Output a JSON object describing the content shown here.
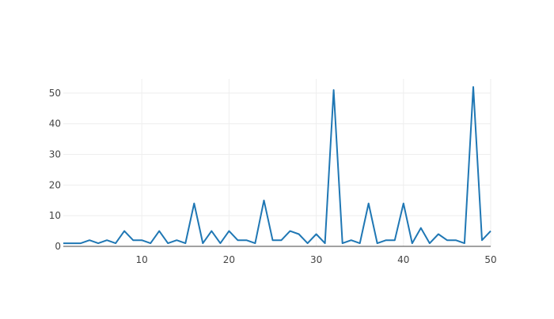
{
  "chart_data": {
    "type": "line",
    "title": "",
    "xlabel": "",
    "ylabel": "",
    "xlim": [
      1,
      50
    ],
    "ylim": [
      0,
      54.6
    ],
    "grid": true,
    "legend": "none",
    "x_ticks": [
      10,
      20,
      30,
      40,
      50
    ],
    "y_ticks": [
      0,
      10,
      20,
      30,
      40,
      50
    ],
    "line_color": "#1f77b4",
    "x": [
      1,
      2,
      3,
      4,
      5,
      6,
      7,
      8,
      9,
      10,
      11,
      12,
      13,
      14,
      15,
      16,
      17,
      18,
      19,
      20,
      21,
      22,
      23,
      24,
      25,
      26,
      27,
      28,
      29,
      30,
      31,
      32,
      33,
      34,
      35,
      36,
      37,
      38,
      39,
      40,
      41,
      42,
      43,
      44,
      45,
      46,
      47,
      48,
      49,
      50
    ],
    "values": [
      1,
      1,
      1,
      2,
      1,
      2,
      1,
      5,
      2,
      2,
      1,
      5,
      1,
      2,
      1,
      14,
      1,
      5,
      1,
      5,
      2,
      2,
      1,
      15,
      2,
      2,
      5,
      4,
      1,
      4,
      1,
      51,
      1,
      2,
      1,
      14,
      1,
      2,
      2,
      14,
      1,
      6,
      1,
      4,
      2,
      2,
      1,
      52,
      2,
      5
    ]
  }
}
